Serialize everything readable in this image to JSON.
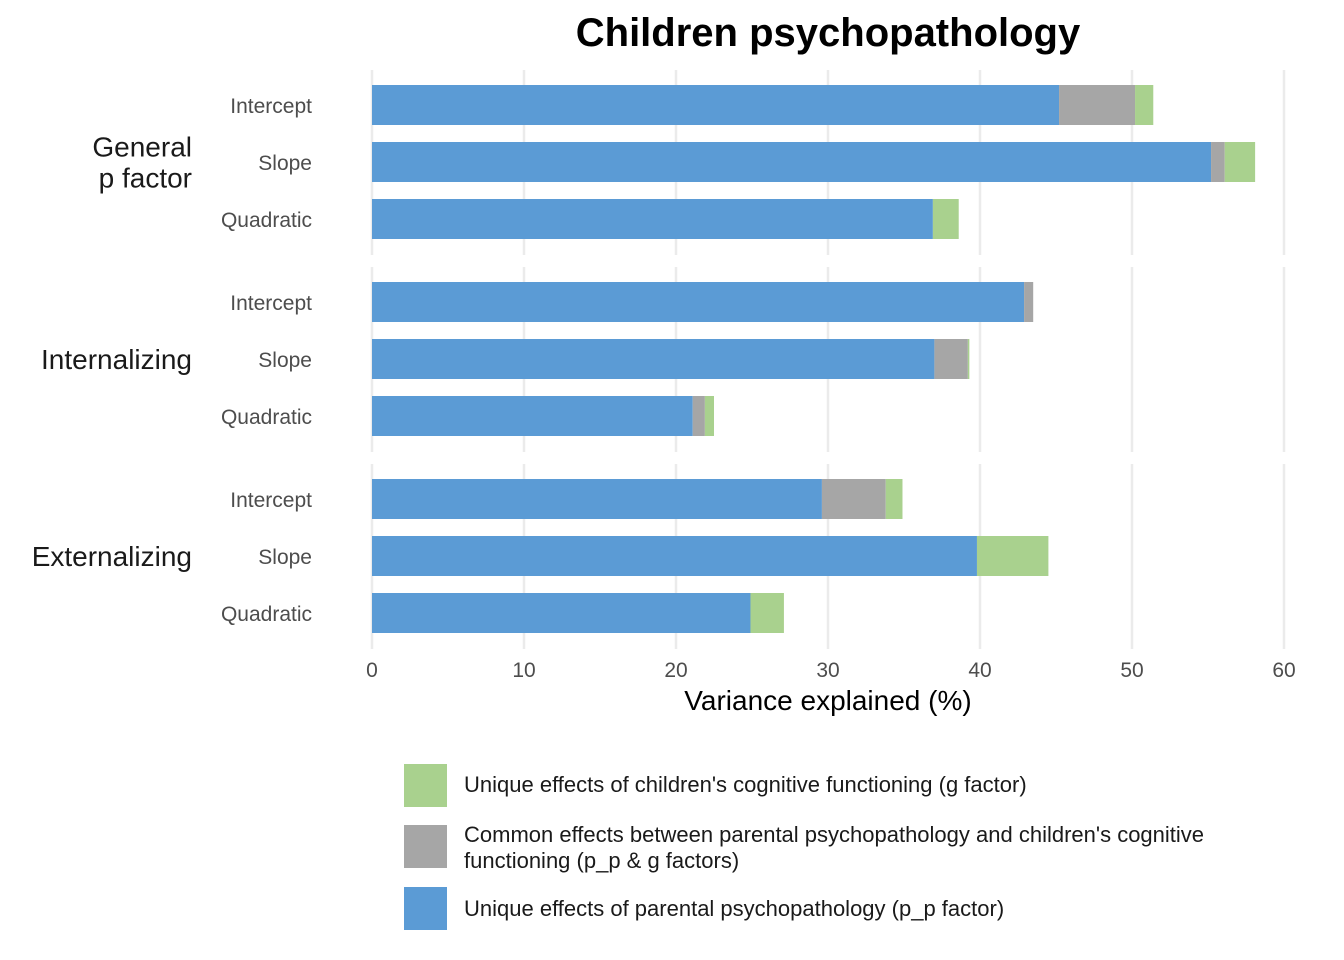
{
  "chart_data": {
    "type": "bar",
    "orientation": "horizontal",
    "stacked": true,
    "title": "Children psychopathology",
    "xlabel": "Variance explained (%)",
    "xlim": [
      0,
      60
    ],
    "xticks": [
      "0",
      "10",
      "20",
      "30",
      "40",
      "50",
      "60"
    ],
    "grid": true,
    "legend_position": "bottom",
    "groups": [
      {
        "label": "General\np factor",
        "label_lines": [
          "General",
          "p factor"
        ],
        "rows": [
          {
            "label": "Intercept",
            "values": [
              45.2,
              5.0,
              1.2
            ]
          },
          {
            "label": "Slope",
            "values": [
              55.2,
              0.9,
              2.0
            ]
          },
          {
            "label": "Quadratic",
            "values": [
              36.9,
              0.0,
              1.7
            ]
          }
        ]
      },
      {
        "label": "Internalizing",
        "label_lines": [
          "Internalizing"
        ],
        "rows": [
          {
            "label": "Intercept",
            "values": [
              42.9,
              0.6,
              0.0
            ]
          },
          {
            "label": "Slope",
            "values": [
              37.0,
              2.2,
              0.1
            ]
          },
          {
            "label": "Quadratic",
            "values": [
              21.1,
              0.8,
              0.6
            ]
          }
        ]
      },
      {
        "label": "Externalizing",
        "label_lines": [
          "Externalizing"
        ],
        "rows": [
          {
            "label": "Intercept",
            "values": [
              29.6,
              4.2,
              1.1
            ]
          },
          {
            "label": "Slope",
            "values": [
              39.8,
              0.0,
              4.7
            ]
          },
          {
            "label": "Quadratic",
            "values": [
              24.9,
              0.0,
              2.2
            ]
          }
        ]
      }
    ],
    "series": [
      {
        "name": "Unique effects of parental psychopathology (p_p factor)",
        "color": "#5b9bd5"
      },
      {
        "name": "Common effects between parental psychopathology and children's cognitive functioning (p_p & g factors)",
        "color": "#a6a6a6"
      },
      {
        "name": "Unique effects of children's cognitive functioning (g factor)",
        "color": "#a9d18e"
      }
    ],
    "legend_order": [
      2,
      1,
      0
    ]
  }
}
